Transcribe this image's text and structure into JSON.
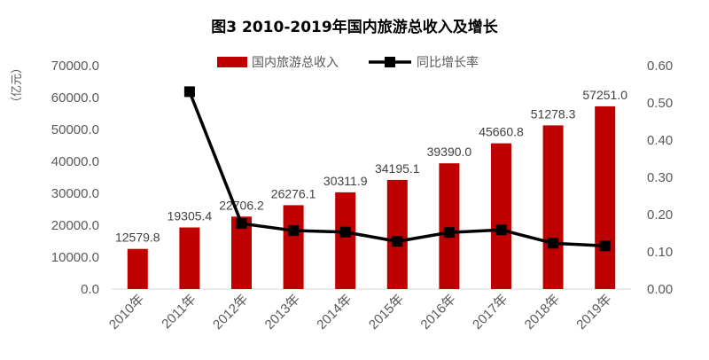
{
  "chart_data": {
    "type": "bar",
    "title": "图3   2010-2019年国内旅游总收入及增长",
    "ylabel": "（亿元）",
    "categories": [
      "2010年",
      "2011年",
      "2012年",
      "2013年",
      "2014年",
      "2015年",
      "2016年",
      "2017年",
      "2018年",
      "2019年"
    ],
    "series": [
      {
        "name": "国内旅游总收入",
        "type": "bar",
        "axis": "left",
        "color": "#C00000",
        "values": [
          12579.8,
          19305.4,
          22706.2,
          26276.1,
          30311.9,
          34195.1,
          39390.0,
          45660.8,
          51278.3,
          57251.0
        ],
        "labels": [
          "12579.8",
          "19305.4",
          "22706.2",
          "26276.1",
          "30311.9",
          "34195.1",
          "39390.0",
          "45660.8",
          "51278.3",
          "57251.0"
        ]
      },
      {
        "name": "同比增长率",
        "type": "line",
        "axis": "right",
        "color": "#000000",
        "values": [
          null,
          0.53,
          0.176,
          0.157,
          0.153,
          0.128,
          0.152,
          0.159,
          0.123,
          0.116
        ]
      }
    ],
    "ylim": [
      0,
      70000
    ],
    "y_ticks": [
      "0.0",
      "10000.0",
      "20000.0",
      "30000.0",
      "40000.0",
      "50000.0",
      "60000.0",
      "70000.0"
    ],
    "y2lim": [
      0,
      0.6
    ],
    "y2_ticks": [
      "0.00",
      "0.10",
      "0.20",
      "0.30",
      "0.40",
      "0.50",
      "0.60"
    ],
    "grid": false,
    "legend_position": "top"
  }
}
